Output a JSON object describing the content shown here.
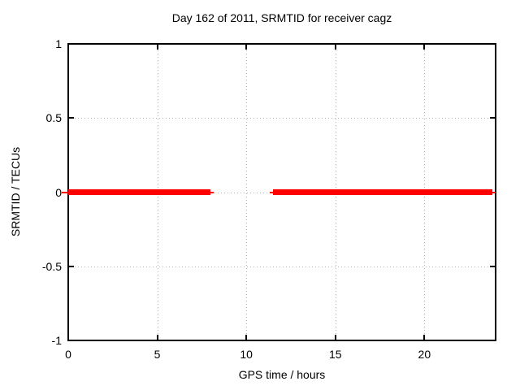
{
  "chart_data": {
    "type": "line",
    "title": "Day 162 of 2011, SRMTID for receiver cagz",
    "xlabel": "GPS time / hours",
    "ylabel": "SRMTID / TECUs",
    "xlim": [
      0,
      24
    ],
    "ylim": [
      -1,
      1
    ],
    "xticks": [
      0,
      5,
      10,
      15,
      20
    ],
    "xticklabels": [
      "0",
      "5",
      "10",
      "15",
      "20"
    ],
    "yticks": [
      1,
      0.5,
      0,
      -0.5,
      -1
    ],
    "yticklabels": [
      "1",
      "0.5",
      "0",
      "-0.5",
      "-1"
    ],
    "grid": "dotted",
    "legend": "none",
    "series": [
      {
        "name": "SRMTID",
        "color": "#ff0000",
        "style": "thick horizontal line at y=0 with thin end caps",
        "segments": [
          {
            "x_start": 0.0,
            "x_end": 8.0,
            "y": 0
          },
          {
            "x_start": 11.5,
            "x_end": 23.8,
            "y": 0
          }
        ],
        "thin_underlay_segments": [
          {
            "x_start": -0.37,
            "x_end": 8.15,
            "y": 0
          },
          {
            "x_start": 11.3,
            "x_end": 24.0,
            "y": 0
          }
        ]
      }
    ],
    "colors": {
      "background": "#ffffff",
      "axis": "#000000",
      "grid": "#b3b3b3",
      "series": "#ff0000",
      "text": "#000000"
    }
  }
}
